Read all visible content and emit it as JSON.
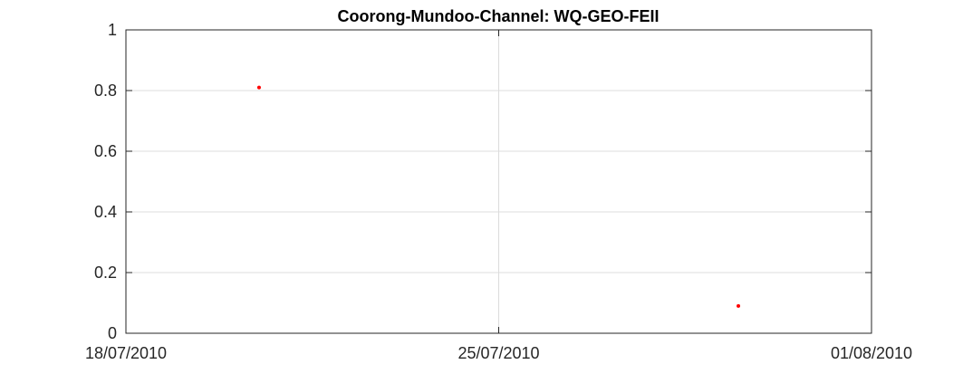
{
  "chart_data": {
    "type": "scatter",
    "title": "Coorong-Mundoo-Channel: WQ-GEO-FEII",
    "xlabel": "",
    "ylabel": "",
    "x_axis_type": "date",
    "xlim": [
      "2010-07-18",
      "2010-08-01"
    ],
    "ylim": [
      0,
      1
    ],
    "x_ticks": [
      {
        "value": "2010-07-18",
        "label": "18/07/2010"
      },
      {
        "value": "2010-07-25",
        "label": "25/07/2010"
      },
      {
        "value": "2010-08-01",
        "label": "01/08/2010"
      }
    ],
    "y_ticks": [
      {
        "value": 0,
        "label": "0"
      },
      {
        "value": 0.2,
        "label": "0.2"
      },
      {
        "value": 0.4,
        "label": "0.4"
      },
      {
        "value": 0.6,
        "label": "0.6"
      },
      {
        "value": 0.8,
        "label": "0.8"
      },
      {
        "value": 1,
        "label": "1"
      }
    ],
    "grid": true,
    "series": [
      {
        "color": "#ff0000",
        "points": [
          {
            "x": "2010-07-20 12:00",
            "y": 0.81
          },
          {
            "x": "2010-07-29 12:00",
            "y": 0.09
          }
        ]
      }
    ]
  }
}
